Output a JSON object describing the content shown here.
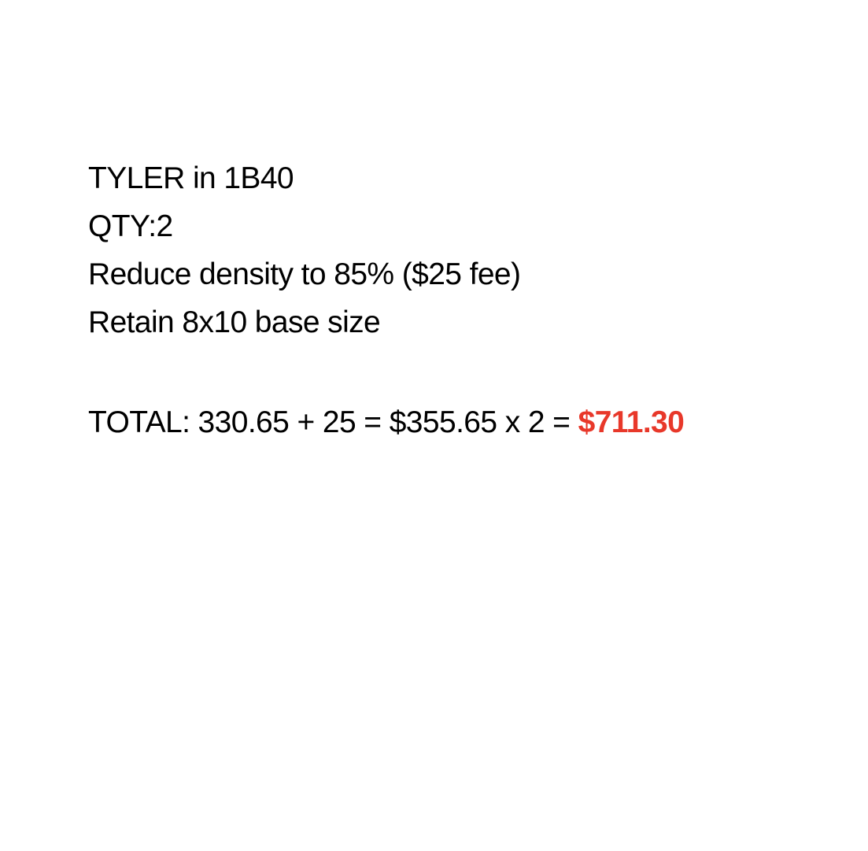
{
  "lines": [
    "TYLER in 1B40",
    "QTY:2",
    "Reduce density to 85% ($25 fee)",
    "Retain 8x10 base size"
  ],
  "total": {
    "label": "TOTAL: 330.65 + 25 = $355.65 x 2 = ",
    "amount": "$711.30",
    "amount_color": "#e8382a"
  }
}
